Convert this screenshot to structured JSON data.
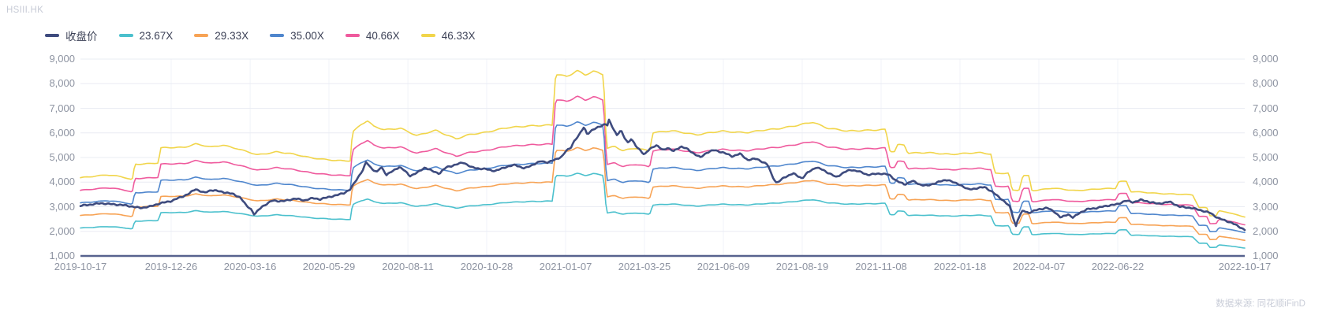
{
  "header": {
    "symbol": "HSIII.HK"
  },
  "footer": {
    "source": "数据来源: 同花顺iFinD"
  },
  "colors": {
    "close": "#3e4b7e",
    "band_23_67": "#4bc0cd",
    "band_29_33": "#f7a355",
    "band_35_00": "#4f86cd",
    "band_40_66": "#ef5a9d",
    "band_46_33": "#f1d54a",
    "grid": "#eaecf3",
    "grid_vertical": "#f1f3f8",
    "axis_line": "#57628e",
    "tick_text": "#8d93a1",
    "legend_text": "#3d4257",
    "muted_text": "#c7cbd6"
  },
  "chart_data": {
    "type": "line",
    "title": "",
    "subtitle": "",
    "legend_position": "top-left",
    "grid": true,
    "y_axis": {
      "min": 1000,
      "max": 9000,
      "tick_step": 1000,
      "sides": [
        "left",
        "right"
      ],
      "tick_labels": [
        "9,000",
        "8,000",
        "7,000",
        "6,000",
        "5,000",
        "4,000",
        "3,000",
        "2,000",
        "1,000"
      ]
    },
    "x_axis": {
      "labels": [
        {
          "text": "2019-10-17",
          "t": 0.0
        },
        {
          "text": "2019-12-26",
          "t": 0.0779
        },
        {
          "text": "2020-03-16",
          "t": 0.1457
        },
        {
          "text": "2020-05-29",
          "t": 0.2134
        },
        {
          "text": "2020-08-11",
          "t": 0.2812
        },
        {
          "text": "2020-10-28",
          "t": 0.3489
        },
        {
          "text": "2021-01-07",
          "t": 0.4167
        },
        {
          "text": "2021-03-25",
          "t": 0.4844
        },
        {
          "text": "2021-06-09",
          "t": 0.5522
        },
        {
          "text": "2021-08-19",
          "t": 0.6199
        },
        {
          "text": "2021-11-08",
          "t": 0.6877
        },
        {
          "text": "2022-01-18",
          "t": 0.7554
        },
        {
          "text": "2022-04-07",
          "t": 0.8232
        },
        {
          "text": "2022-06-22",
          "t": 0.8909
        },
        {
          "text": "2022-10-17",
          "t": 1.0
        }
      ]
    },
    "close_series": {
      "name": "收盘价",
      "color_key": "close",
      "points": [
        [
          "2019-10-17",
          3040
        ],
        [
          "2019-11-02",
          3140
        ],
        [
          "2019-11-20",
          3060
        ],
        [
          "2019-12-02",
          2950
        ],
        [
          "2019-12-10",
          3010
        ],
        [
          "2019-12-16",
          3120
        ],
        [
          "2019-12-26",
          3230
        ],
        [
          "2020-01-13",
          3520
        ],
        [
          "2020-01-20",
          3720
        ],
        [
          "2020-01-29",
          3560
        ],
        [
          "2020-02-05",
          3680
        ],
        [
          "2020-02-17",
          3600
        ],
        [
          "2020-02-27",
          3520
        ],
        [
          "2020-03-06",
          3380
        ],
        [
          "2020-03-12",
          3050
        ],
        [
          "2020-03-17",
          2900
        ],
        [
          "2020-03-20",
          2680
        ],
        [
          "2020-03-27",
          3000
        ],
        [
          "2020-04-06",
          3250
        ],
        [
          "2020-04-16",
          3220
        ],
        [
          "2020-04-27",
          3330
        ],
        [
          "2020-05-06",
          3260
        ],
        [
          "2020-05-14",
          3350
        ],
        [
          "2020-05-21",
          3300
        ],
        [
          "2020-05-29",
          3400
        ],
        [
          "2020-06-05",
          3460
        ],
        [
          "2020-06-12",
          3560
        ],
        [
          "2020-06-18",
          3700
        ],
        [
          "2020-06-23",
          4050
        ],
        [
          "2020-06-30",
          4500
        ],
        [
          "2020-07-03",
          4820
        ],
        [
          "2020-07-08",
          4550
        ],
        [
          "2020-07-13",
          4400
        ],
        [
          "2020-07-17",
          4620
        ],
        [
          "2020-07-22",
          4300
        ],
        [
          "2020-07-28",
          4450
        ],
        [
          "2020-08-03",
          4620
        ],
        [
          "2020-08-07",
          4500
        ],
        [
          "2020-08-13",
          4250
        ],
        [
          "2020-08-21",
          4400
        ],
        [
          "2020-08-28",
          4600
        ],
        [
          "2020-09-04",
          4450
        ],
        [
          "2020-09-11",
          4350
        ],
        [
          "2020-09-18",
          4600
        ],
        [
          "2020-09-25",
          4680
        ],
        [
          "2020-10-05",
          4800
        ],
        [
          "2020-10-13",
          4600
        ],
        [
          "2020-10-21",
          4550
        ],
        [
          "2020-10-28",
          4520
        ],
        [
          "2020-11-05",
          4450
        ],
        [
          "2020-11-13",
          4600
        ],
        [
          "2020-11-23",
          4700
        ],
        [
          "2020-12-01",
          4550
        ],
        [
          "2020-12-08",
          4700
        ],
        [
          "2020-12-16",
          4850
        ],
        [
          "2020-12-22",
          4800
        ],
        [
          "2020-12-28",
          4900
        ],
        [
          "2021-01-04",
          5050
        ],
        [
          "2021-01-07",
          5250
        ],
        [
          "2021-01-12",
          5400
        ],
        [
          "2021-01-15",
          5650
        ],
        [
          "2021-01-20",
          5900
        ],
        [
          "2021-01-25",
          6250
        ],
        [
          "2021-01-28",
          5950
        ],
        [
          "2021-02-02",
          6100
        ],
        [
          "2021-02-08",
          6250
        ],
        [
          "2021-02-15",
          6350
        ],
        [
          "2021-02-17",
          6300
        ],
        [
          "2021-02-18",
          6550
        ],
        [
          "2021-02-23",
          6150
        ],
        [
          "2021-02-26",
          5900
        ],
        [
          "2021-03-02",
          6100
        ],
        [
          "2021-03-05",
          5850
        ],
        [
          "2021-03-09",
          5600
        ],
        [
          "2021-03-12",
          5750
        ],
        [
          "2021-03-17",
          5450
        ],
        [
          "2021-03-21",
          5300
        ],
        [
          "2021-03-25",
          5100
        ],
        [
          "2021-03-30",
          5350
        ],
        [
          "2021-04-05",
          5500
        ],
        [
          "2021-04-12",
          5300
        ],
        [
          "2021-04-16",
          5400
        ],
        [
          "2021-04-22",
          5250
        ],
        [
          "2021-04-29",
          5450
        ],
        [
          "2021-05-05",
          5350
        ],
        [
          "2021-05-12",
          5150
        ],
        [
          "2021-05-18",
          5000
        ],
        [
          "2021-05-24",
          5200
        ],
        [
          "2021-05-31",
          5300
        ],
        [
          "2021-06-09",
          5200
        ],
        [
          "2021-06-17",
          5050
        ],
        [
          "2021-06-24",
          5150
        ],
        [
          "2021-07-01",
          4900
        ],
        [
          "2021-07-09",
          4950
        ],
        [
          "2021-07-19",
          4700
        ],
        [
          "2021-07-23",
          4250
        ],
        [
          "2021-07-27",
          3950
        ],
        [
          "2021-08-03",
          4200
        ],
        [
          "2021-08-11",
          4350
        ],
        [
          "2021-08-19",
          4150
        ],
        [
          "2021-08-25",
          4400
        ],
        [
          "2021-09-02",
          4600
        ],
        [
          "2021-09-09",
          4500
        ],
        [
          "2021-09-16",
          4350
        ],
        [
          "2021-09-23",
          4200
        ],
        [
          "2021-10-01",
          4400
        ],
        [
          "2021-10-08",
          4500
        ],
        [
          "2021-10-15",
          4450
        ],
        [
          "2021-10-25",
          4300
        ],
        [
          "2021-11-08",
          4350
        ],
        [
          "2021-11-15",
          4300
        ],
        [
          "2021-11-22",
          4050
        ],
        [
          "2021-11-29",
          3900
        ],
        [
          "2021-12-06",
          4050
        ],
        [
          "2021-12-13",
          3900
        ],
        [
          "2021-12-20",
          3850
        ],
        [
          "2021-12-29",
          4000
        ],
        [
          "2022-01-07",
          4100
        ],
        [
          "2022-01-14",
          3950
        ],
        [
          "2022-01-18",
          3900
        ],
        [
          "2022-01-26",
          3700
        ],
        [
          "2022-02-04",
          3750
        ],
        [
          "2022-02-12",
          3800
        ],
        [
          "2022-02-21",
          3550
        ],
        [
          "2022-03-01",
          3300
        ],
        [
          "2022-03-09",
          3000
        ],
        [
          "2022-03-15",
          2200
        ],
        [
          "2022-03-17",
          2500
        ],
        [
          "2022-03-22",
          2850
        ],
        [
          "2022-03-28",
          2750
        ],
        [
          "2022-04-07",
          2900
        ],
        [
          "2022-04-15",
          2950
        ],
        [
          "2022-04-22",
          2800
        ],
        [
          "2022-04-28",
          2550
        ],
        [
          "2022-05-05",
          2700
        ],
        [
          "2022-05-10",
          2550
        ],
        [
          "2022-05-16",
          2750
        ],
        [
          "2022-05-24",
          2900
        ],
        [
          "2022-06-02",
          2950
        ],
        [
          "2022-06-13",
          3050
        ],
        [
          "2022-06-22",
          3100
        ],
        [
          "2022-06-29",
          3250
        ],
        [
          "2022-07-06",
          3180
        ],
        [
          "2022-07-13",
          3280
        ],
        [
          "2022-07-21",
          3200
        ],
        [
          "2022-07-29",
          3120
        ],
        [
          "2022-08-09",
          3200
        ],
        [
          "2022-08-18",
          3000
        ],
        [
          "2022-08-29",
          2950
        ],
        [
          "2022-09-07",
          2850
        ],
        [
          "2022-09-15",
          2750
        ],
        [
          "2022-09-22",
          2550
        ],
        [
          "2022-09-28",
          2450
        ],
        [
          "2022-10-05",
          2350
        ],
        [
          "2022-10-11",
          2200
        ],
        [
          "2022-10-17",
          2070
        ]
      ]
    },
    "pe_bands": {
      "description": "PE band lines; line value = base earnings series x multiple",
      "multiples": [
        {
          "label": "23.67X",
          "m": 23.67,
          "color_key": "band_23_67"
        },
        {
          "label": "29.33X",
          "m": 29.33,
          "color_key": "band_29_33"
        },
        {
          "label": "35.00X",
          "m": 35.0,
          "color_key": "band_35_00"
        },
        {
          "label": "40.66X",
          "m": 40.66,
          "color_key": "band_40_66"
        },
        {
          "label": "46.33X",
          "m": 46.33,
          "color_key": "band_46_33"
        }
      ],
      "base_points": [
        [
          "2019-10-17",
          90
        ],
        [
          "2019-11-06",
          93
        ],
        [
          "2019-11-18",
          91
        ],
        [
          "2019-11-26",
          88
        ],
        [
          "2019-11-28",
          102
        ],
        [
          "2019-12-16",
          103
        ],
        [
          "2019-12-18",
          116
        ],
        [
          "2020-01-08",
          117
        ],
        [
          "2020-01-20",
          120
        ],
        [
          "2020-02-05",
          117
        ],
        [
          "2020-02-17",
          119
        ],
        [
          "2020-03-02",
          116
        ],
        [
          "2020-03-12",
          113
        ],
        [
          "2020-03-23",
          110
        ],
        [
          "2020-04-10",
          113
        ],
        [
          "2020-04-24",
          111
        ],
        [
          "2020-05-12",
          108
        ],
        [
          "2020-06-05",
          105
        ],
        [
          "2020-06-18",
          105
        ],
        [
          "2020-06-20",
          130
        ],
        [
          "2020-06-28",
          137
        ],
        [
          "2020-07-04",
          140
        ],
        [
          "2020-07-10",
          135
        ],
        [
          "2020-07-20",
          132
        ],
        [
          "2020-08-04",
          134
        ],
        [
          "2020-08-20",
          127
        ],
        [
          "2020-09-08",
          132
        ],
        [
          "2020-09-28",
          124
        ],
        [
          "2020-10-12",
          128
        ],
        [
          "2020-10-26",
          130
        ],
        [
          "2020-11-16",
          134
        ],
        [
          "2020-12-04",
          136
        ],
        [
          "2020-12-26",
          136
        ],
        [
          "2020-12-29",
          181
        ],
        [
          "2021-01-08",
          179
        ],
        [
          "2021-01-18",
          184
        ],
        [
          "2021-01-26",
          180
        ],
        [
          "2021-02-03",
          183
        ],
        [
          "2021-02-13",
          181
        ],
        [
          "2021-02-16",
          116
        ],
        [
          "2021-02-24",
          118
        ],
        [
          "2021-03-04",
          114
        ],
        [
          "2021-03-16",
          116
        ],
        [
          "2021-03-30",
          114
        ],
        [
          "2021-04-02",
          130
        ],
        [
          "2021-04-20",
          131
        ],
        [
          "2021-05-14",
          128
        ],
        [
          "2021-06-08",
          131
        ],
        [
          "2021-07-02",
          130
        ],
        [
          "2021-07-26",
          133
        ],
        [
          "2021-08-16",
          136
        ],
        [
          "2021-08-30",
          139
        ],
        [
          "2021-09-14",
          134
        ],
        [
          "2021-10-04",
          131
        ],
        [
          "2021-10-22",
          132
        ],
        [
          "2021-11-12",
          132
        ],
        [
          "2021-11-16",
          113
        ],
        [
          "2021-11-20",
          113
        ],
        [
          "2021-11-23",
          119
        ],
        [
          "2021-11-29",
          119
        ],
        [
          "2021-12-02",
          112
        ],
        [
          "2021-12-20",
          112
        ],
        [
          "2022-01-10",
          111
        ],
        [
          "2022-02-08",
          112
        ],
        [
          "2022-02-18",
          111
        ],
        [
          "2022-02-22",
          94
        ],
        [
          "2022-03-08",
          94
        ],
        [
          "2022-03-11",
          79
        ],
        [
          "2022-03-18",
          79
        ],
        [
          "2022-03-22",
          92
        ],
        [
          "2022-03-28",
          92
        ],
        [
          "2022-03-31",
          79
        ],
        [
          "2022-04-20",
          81
        ],
        [
          "2022-05-12",
          79
        ],
        [
          "2022-06-02",
          80
        ],
        [
          "2022-06-20",
          81
        ],
        [
          "2022-06-23",
          87
        ],
        [
          "2022-06-30",
          87
        ],
        [
          "2022-07-04",
          78
        ],
        [
          "2022-07-22",
          77
        ],
        [
          "2022-08-10",
          76
        ],
        [
          "2022-08-30",
          75
        ],
        [
          "2022-09-05",
          64
        ],
        [
          "2022-09-12",
          64
        ],
        [
          "2022-09-15",
          57
        ],
        [
          "2022-09-21",
          57
        ],
        [
          "2022-09-23",
          61
        ],
        [
          "2022-09-30",
          60
        ],
        [
          "2022-10-08",
          58
        ],
        [
          "2022-10-17",
          56
        ]
      ]
    }
  }
}
